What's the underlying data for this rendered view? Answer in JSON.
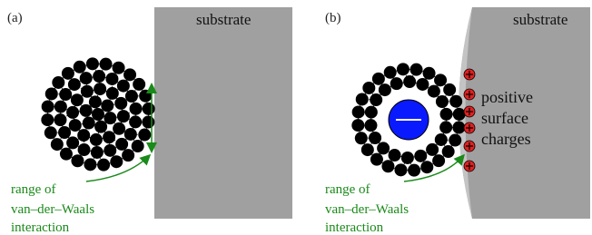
{
  "panels": [
    {
      "label": "(a)",
      "substrate": "substrate",
      "annotation": [
        "range of",
        "van–der–Waals",
        "interaction"
      ]
    },
    {
      "label": "(b)",
      "substrate": "substrate",
      "annotation": [
        "range of",
        "van–der–Waals",
        "interaction"
      ],
      "charges_label": [
        "positive",
        "surface",
        "charges"
      ]
    }
  ]
}
